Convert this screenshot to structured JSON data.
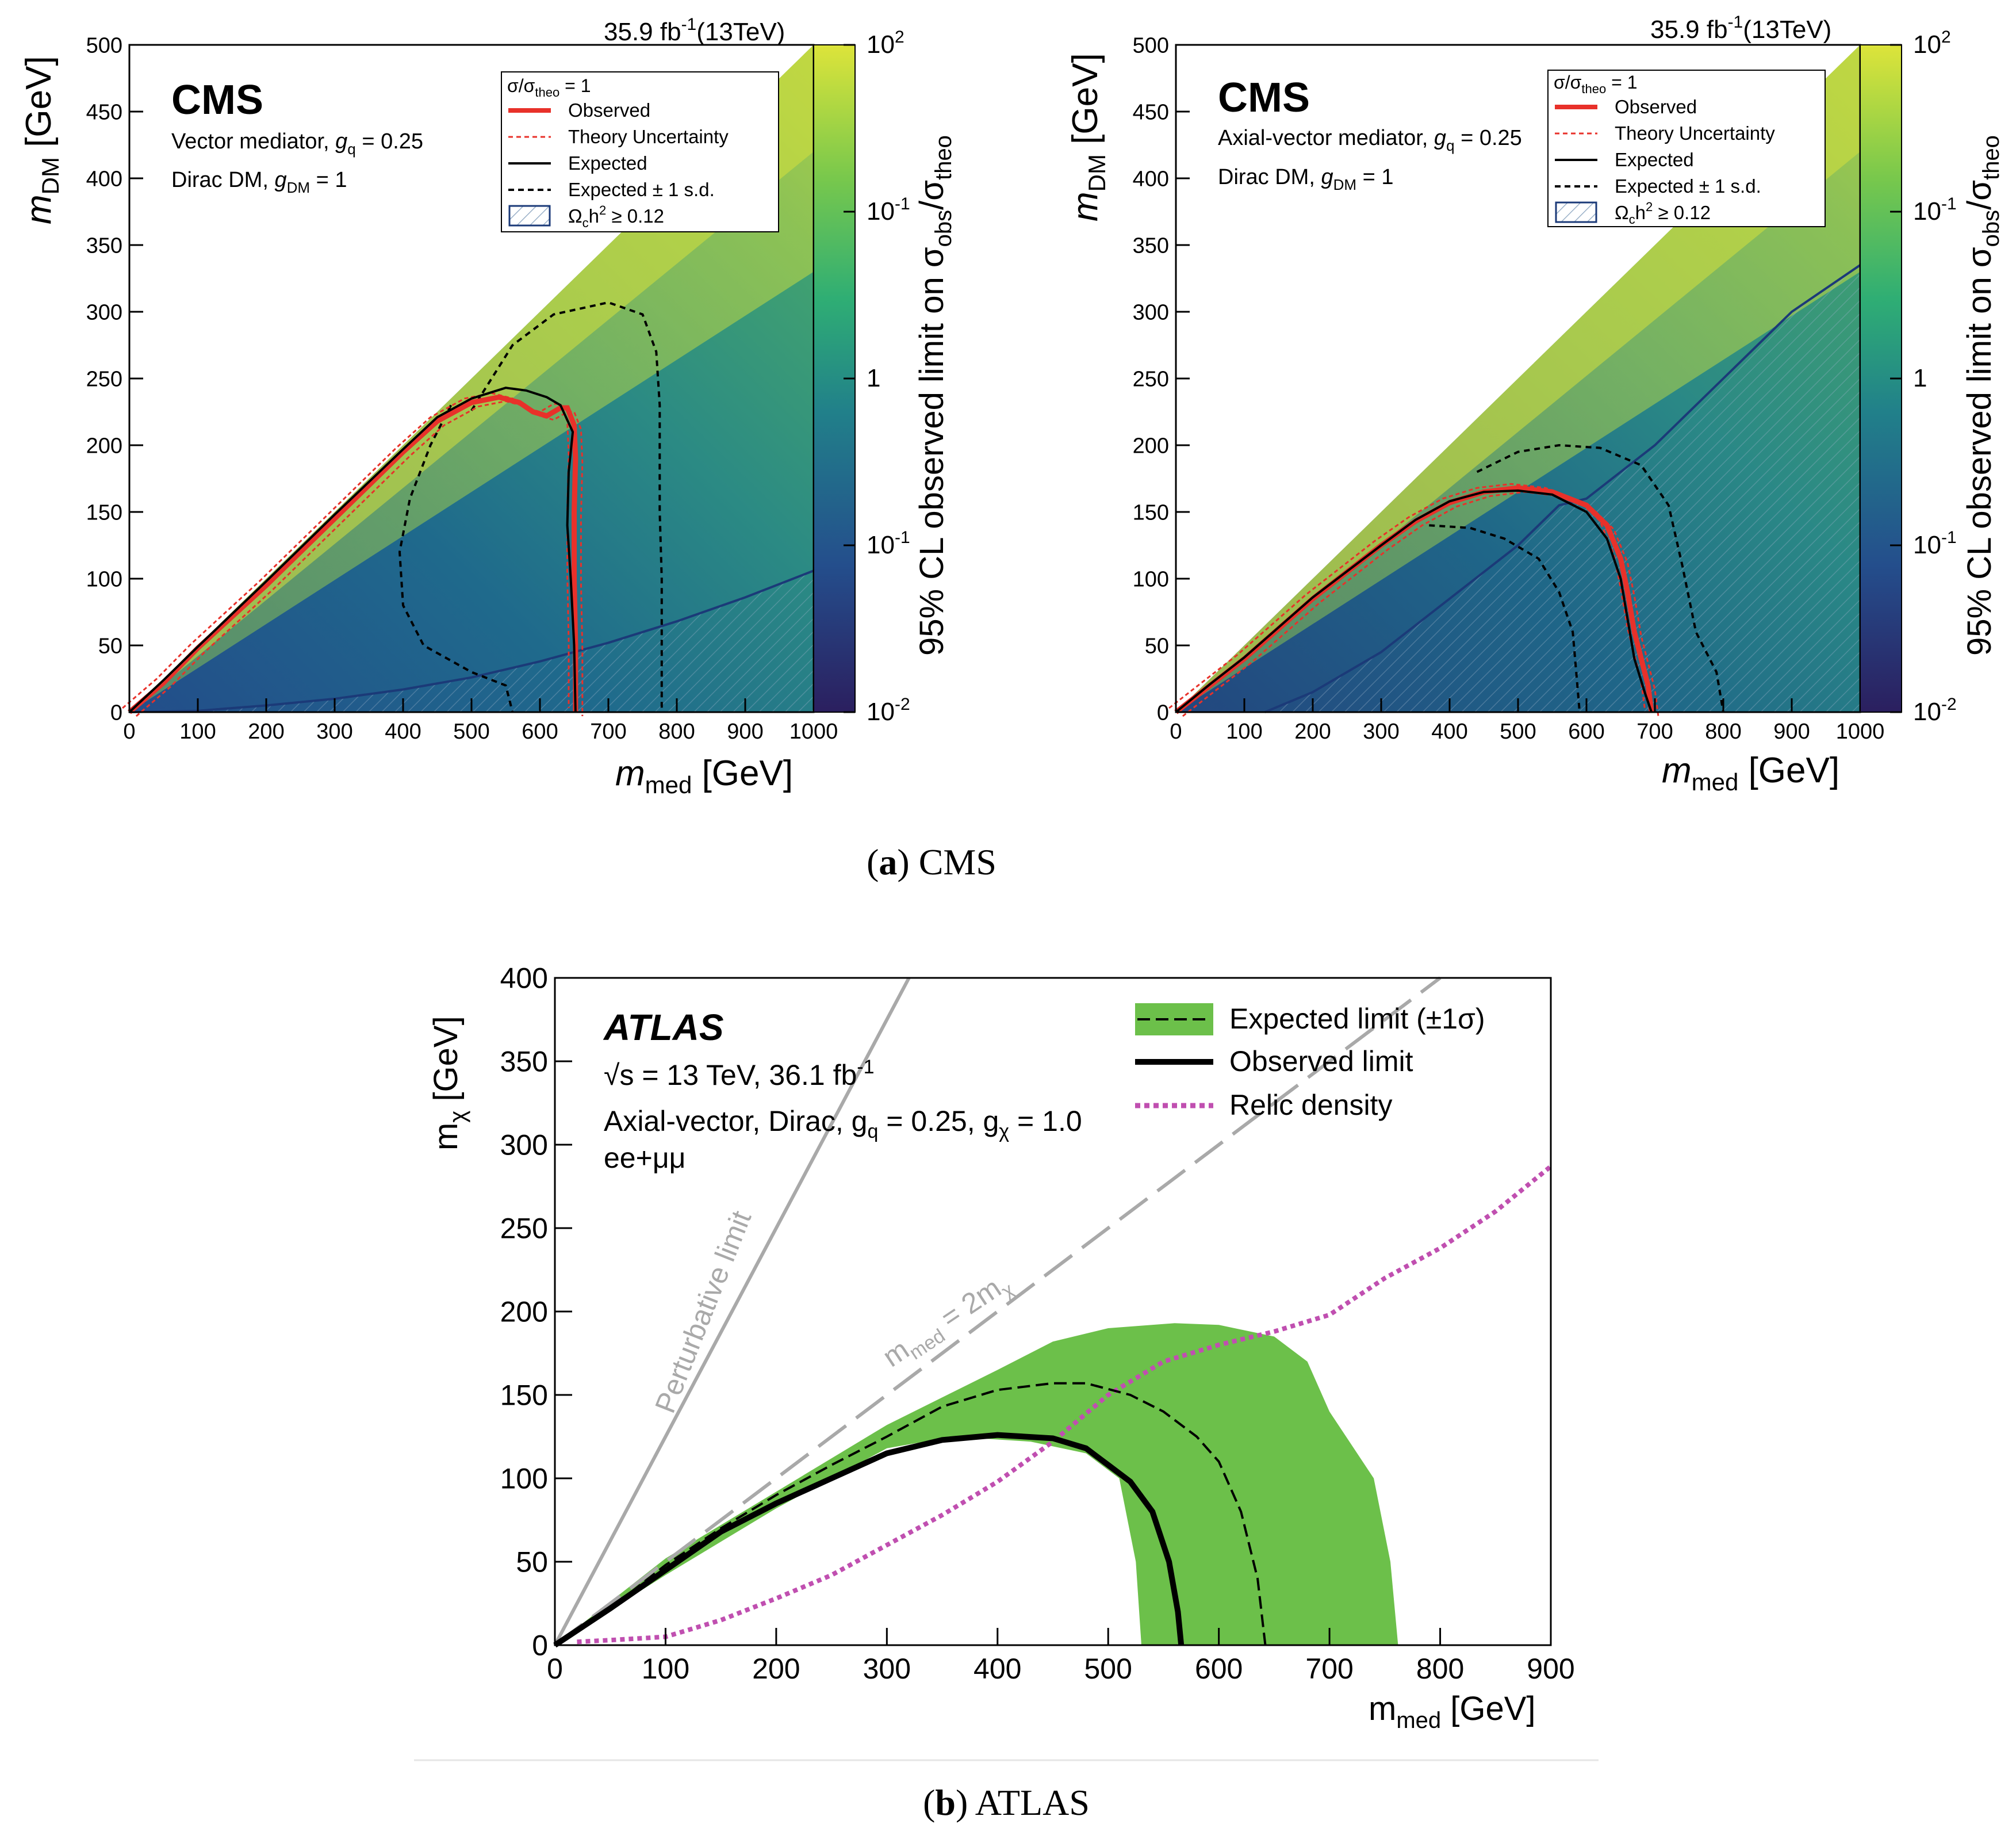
{
  "figure": {
    "caption_a_letter": "a",
    "caption_a_text": "CMS",
    "caption_b_letter": "b",
    "caption_b_text": "ATLAS"
  },
  "colors": {
    "observed": "#e8312a",
    "expected": "#000000",
    "relic": "#1b3a78",
    "atlas_band": "#6cc04a",
    "atlas_relic": "#c04fb0",
    "atlas_guide": "#a9a9a9"
  },
  "chart_data": [
    {
      "type": "heatmap",
      "experiment": "CMS",
      "lumi_label": "35.9 fb",
      "lumi_exponent": "-1",
      "energy_label": "(13TeV)",
      "logo": "CMS",
      "model_line1": "Vector mediator, ",
      "model_line1_sym": "g",
      "model_line1_sub": "q",
      "model_line1_val": " = 0.25",
      "model_line2": "Dirac DM, ",
      "model_line2_sym": "g",
      "model_line2_sub": "DM",
      "model_line2_val": " = 1",
      "xlabel_sym": "m",
      "xlabel_sub": "med",
      "xlabel_unit": " [GeV]",
      "ylabel_sym": "m",
      "ylabel_sub": "DM",
      "ylabel_unit": " [GeV]",
      "xlim": [
        0,
        1000
      ],
      "ylim": [
        0,
        500
      ],
      "xticks": [
        "0",
        "100",
        "200",
        "300",
        "400",
        "500",
        "600",
        "700",
        "800",
        "900",
        "1000"
      ],
      "yticks": [
        "0",
        "50",
        "100",
        "150",
        "200",
        "250",
        "300",
        "350",
        "400",
        "450",
        "500"
      ],
      "colorbar": {
        "label": "95% CL observed limit on σ",
        "label_sub1": "obs",
        "label_mid": "/σ",
        "label_sub2": "theo",
        "range": [
          0.01,
          100
        ],
        "scale": "log",
        "tick_labels": [
          "10",
          "10",
          "1",
          "10",
          "10"
        ],
        "tick_exps": [
          "2",
          "-1",
          "",
          "-1",
          "-2"
        ]
      },
      "legend": {
        "title": "σ/σ",
        "title_sub": "theo",
        "title_val": " = 1",
        "entries": [
          "Observed",
          "Theory Uncertainty",
          "Expected",
          "Expected ± 1 s.d."
        ],
        "relic_label": "Ω",
        "relic_sub": "c",
        "relic_rest": "h",
        "relic_sup": "2",
        "relic_val": " ≥ 0.12"
      },
      "observed_contour": [
        [
          0,
          0
        ],
        [
          50,
          22
        ],
        [
          100,
          48
        ],
        [
          200,
          95
        ],
        [
          300,
          145
        ],
        [
          400,
          195
        ],
        [
          450,
          218
        ],
        [
          500,
          232
        ],
        [
          540,
          236
        ],
        [
          570,
          232
        ],
        [
          590,
          225
        ],
        [
          610,
          222
        ],
        [
          630,
          228
        ],
        [
          640,
          228
        ],
        [
          650,
          215
        ],
        [
          652,
          190
        ],
        [
          650,
          150
        ],
        [
          650,
          100
        ],
        [
          652,
          50
        ],
        [
          652,
          0
        ]
      ],
      "expected_contour": [
        [
          0,
          0
        ],
        [
          50,
          24
        ],
        [
          100,
          49
        ],
        [
          200,
          98
        ],
        [
          300,
          148
        ],
        [
          400,
          197
        ],
        [
          450,
          221
        ],
        [
          500,
          235
        ],
        [
          550,
          243
        ],
        [
          580,
          241
        ],
        [
          610,
          236
        ],
        [
          630,
          230
        ],
        [
          648,
          210
        ],
        [
          642,
          180
        ],
        [
          640,
          140
        ],
        [
          645,
          100
        ],
        [
          650,
          50
        ],
        [
          652,
          0
        ]
      ],
      "expected_plus1sd": [
        [
          500,
          226
        ],
        [
          560,
          275
        ],
        [
          620,
          298
        ],
        [
          700,
          307
        ],
        [
          750,
          298
        ],
        [
          770,
          270
        ],
        [
          775,
          230
        ],
        [
          775,
          150
        ],
        [
          778,
          100
        ],
        [
          778,
          0
        ]
      ],
      "expected_minus1sd": [
        [
          470,
          230
        ],
        [
          440,
          200
        ],
        [
          410,
          160
        ],
        [
          395,
          120
        ],
        [
          400,
          80
        ],
        [
          430,
          50
        ],
        [
          500,
          30
        ],
        [
          550,
          20
        ],
        [
          560,
          0
        ]
      ],
      "relic_line": [
        [
          0,
          0
        ],
        [
          100,
          1
        ],
        [
          200,
          5
        ],
        [
          300,
          10
        ],
        [
          400,
          17
        ],
        [
          500,
          26
        ],
        [
          600,
          38
        ],
        [
          700,
          52
        ],
        [
          800,
          68
        ],
        [
          900,
          86
        ],
        [
          1000,
          106
        ]
      ]
    },
    {
      "type": "heatmap",
      "experiment": "CMS",
      "lumi_label": "35.9 fb",
      "lumi_exponent": "-1",
      "energy_label": "(13TeV)",
      "logo": "CMS",
      "model_line1": "Axial-vector mediator, ",
      "model_line1_sym": "g",
      "model_line1_sub": "q",
      "model_line1_val": " = 0.25",
      "model_line2": "Dirac DM, ",
      "model_line2_sym": "g",
      "model_line2_sub": "DM",
      "model_line2_val": " = 1",
      "xlabel_sym": "m",
      "xlabel_sub": "med",
      "xlabel_unit": " [GeV]",
      "ylabel_sym": "m",
      "ylabel_sub": "DM",
      "ylabel_unit": " [GeV]",
      "xlim": [
        0,
        1000
      ],
      "ylim": [
        0,
        500
      ],
      "xticks": [
        "0",
        "100",
        "200",
        "300",
        "400",
        "500",
        "600",
        "700",
        "800",
        "900",
        "1000"
      ],
      "yticks": [
        "0",
        "50",
        "100",
        "150",
        "200",
        "250",
        "300",
        "350",
        "400",
        "450",
        "500"
      ],
      "colorbar": {
        "label": "95% CL observed limit on σ",
        "label_sub1": "obs",
        "label_mid": "/σ",
        "label_sub2": "theo",
        "range": [
          0.01,
          100
        ],
        "scale": "log",
        "tick_labels": [
          "10",
          "10",
          "1",
          "10",
          "10"
        ],
        "tick_exps": [
          "2",
          "-1",
          "",
          "-1",
          "-2"
        ]
      },
      "legend": {
        "title": "σ/σ",
        "title_sub": "theo",
        "title_val": " = 1",
        "entries": [
          "Observed",
          "Theory Uncertainty",
          "Expected",
          "Expected ± 1 s.d."
        ],
        "relic_label": "Ω",
        "relic_sub": "c",
        "relic_rest": "h",
        "relic_sup": "2",
        "relic_val": " ≥ 0.12"
      },
      "observed_contour": [
        [
          0,
          0
        ],
        [
          50,
          20
        ],
        [
          100,
          40
        ],
        [
          200,
          85
        ],
        [
          300,
          125
        ],
        [
          350,
          143
        ],
        [
          400,
          157
        ],
        [
          450,
          165
        ],
        [
          500,
          168
        ],
        [
          550,
          165
        ],
        [
          600,
          155
        ],
        [
          630,
          140
        ],
        [
          650,
          115
        ],
        [
          660,
          90
        ],
        [
          670,
          60
        ],
        [
          680,
          40
        ],
        [
          690,
          20
        ],
        [
          695,
          0
        ]
      ],
      "expected_contour": [
        [
          0,
          0
        ],
        [
          50,
          21
        ],
        [
          100,
          41
        ],
        [
          200,
          86
        ],
        [
          300,
          125
        ],
        [
          350,
          144
        ],
        [
          400,
          158
        ],
        [
          450,
          165
        ],
        [
          500,
          166
        ],
        [
          550,
          163
        ],
        [
          600,
          150
        ],
        [
          630,
          130
        ],
        [
          650,
          100
        ],
        [
          660,
          70
        ],
        [
          670,
          40
        ],
        [
          685,
          15
        ],
        [
          695,
          0
        ]
      ],
      "expected_plus1sd": [
        [
          440,
          180
        ],
        [
          500,
          195
        ],
        [
          560,
          200
        ],
        [
          620,
          198
        ],
        [
          680,
          185
        ],
        [
          720,
          155
        ],
        [
          740,
          110
        ],
        [
          760,
          60
        ],
        [
          790,
          30
        ],
        [
          800,
          0
        ]
      ],
      "expected_minus1sd": [
        [
          370,
          140
        ],
        [
          430,
          138
        ],
        [
          480,
          130
        ],
        [
          530,
          115
        ],
        [
          560,
          90
        ],
        [
          580,
          60
        ],
        [
          585,
          30
        ],
        [
          590,
          0
        ]
      ],
      "relic_line": [
        [
          130,
          0
        ],
        [
          200,
          15
        ],
        [
          300,
          45
        ],
        [
          400,
          85
        ],
        [
          500,
          125
        ],
        [
          560,
          155
        ],
        [
          600,
          160
        ],
        [
          700,
          200
        ],
        [
          800,
          250
        ],
        [
          900,
          300
        ],
        [
          1000,
          335
        ]
      ]
    },
    {
      "type": "line",
      "experiment": "ATLAS",
      "logo": "ATLAS",
      "info_sqrt": "√s",
      "info_rest": " = 13 TeV, 36.1 fb",
      "info_exp": "-1",
      "model_text": "Axial-vector, Dirac, g",
      "model_sub1": "q",
      "model_mid": " = 0.25, g",
      "model_sub2": "χ",
      "model_end": " = 1.0",
      "channel": "ee+μμ",
      "xlabel_sym": "m",
      "xlabel_sub": "med",
      "xlabel_unit": " [GeV]",
      "ylabel_sym": "m",
      "ylabel_sub": "χ",
      "ylabel_unit": " [GeV]",
      "xlim": [
        0,
        900
      ],
      "ylim": [
        0,
        400
      ],
      "xticks": [
        "0",
        "100",
        "200",
        "300",
        "400",
        "500",
        "600",
        "700",
        "800",
        "900"
      ],
      "yticks": [
        "0",
        "50",
        "100",
        "150",
        "200",
        "250",
        "300",
        "350",
        "400"
      ],
      "legend": [
        "Expected limit (±1σ)",
        "Observed limit",
        "Relic density"
      ],
      "perturbative_label": "Perturbative limit",
      "diag_label_sym": "m",
      "diag_label_sub": "med",
      "diag_label_mid": " = 2m",
      "diag_label_sub2": "χ",
      "perturbative_line": [
        [
          0,
          0
        ],
        [
          320,
          400
        ]
      ],
      "diagonal_line": [
        [
          0,
          0
        ],
        [
          800,
          400
        ]
      ],
      "expected_band_upper": [
        [
          0,
          0
        ],
        [
          100,
          52
        ],
        [
          200,
          92
        ],
        [
          300,
          132
        ],
        [
          400,
          165
        ],
        [
          450,
          182
        ],
        [
          500,
          190
        ],
        [
          560,
          193
        ],
        [
          600,
          192
        ],
        [
          650,
          185
        ],
        [
          680,
          170
        ],
        [
          700,
          140
        ],
        [
          720,
          120
        ],
        [
          740,
          100
        ],
        [
          755,
          50
        ],
        [
          762,
          0
        ]
      ],
      "expected_band_lower": [
        [
          530,
          0
        ],
        [
          525,
          50
        ],
        [
          510,
          100
        ],
        [
          480,
          115
        ],
        [
          430,
          122
        ],
        [
          360,
          125
        ],
        [
          300,
          118
        ],
        [
          200,
          82
        ],
        [
          100,
          42
        ],
        [
          0,
          0
        ]
      ],
      "expected_line": [
        [
          0,
          0
        ],
        [
          50,
          22
        ],
        [
          100,
          48
        ],
        [
          150,
          70
        ],
        [
          200,
          90
        ],
        [
          250,
          108
        ],
        [
          300,
          125
        ],
        [
          350,
          143
        ],
        [
          400,
          153
        ],
        [
          450,
          157
        ],
        [
          480,
          157
        ],
        [
          520,
          150
        ],
        [
          550,
          140
        ],
        [
          580,
          125
        ],
        [
          600,
          110
        ],
        [
          620,
          80
        ],
        [
          635,
          40
        ],
        [
          642,
          0
        ]
      ],
      "observed_line": [
        [
          0,
          0
        ],
        [
          50,
          22
        ],
        [
          100,
          45
        ],
        [
          150,
          68
        ],
        [
          200,
          85
        ],
        [
          250,
          100
        ],
        [
          300,
          115
        ],
        [
          350,
          123
        ],
        [
          400,
          126
        ],
        [
          450,
          124
        ],
        [
          480,
          118
        ],
        [
          500,
          108
        ],
        [
          520,
          98
        ],
        [
          540,
          80
        ],
        [
          555,
          50
        ],
        [
          563,
          20
        ],
        [
          566,
          0
        ]
      ],
      "relic_line": [
        [
          20,
          2
        ],
        [
          50,
          3
        ],
        [
          100,
          5
        ],
        [
          150,
          15
        ],
        [
          200,
          28
        ],
        [
          250,
          42
        ],
        [
          300,
          60
        ],
        [
          350,
          78
        ],
        [
          400,
          98
        ],
        [
          450,
          122
        ],
        [
          500,
          150
        ],
        [
          550,
          170
        ],
        [
          600,
          180
        ],
        [
          650,
          188
        ],
        [
          700,
          198
        ],
        [
          750,
          220
        ],
        [
          800,
          238
        ],
        [
          850,
          260
        ],
        [
          900,
          287
        ]
      ]
    }
  ]
}
